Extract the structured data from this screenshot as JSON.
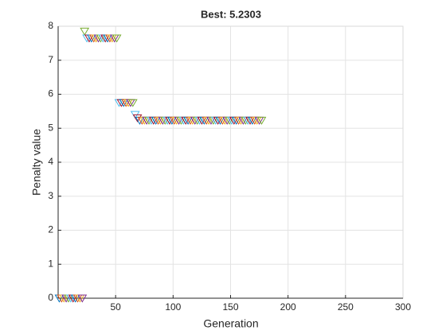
{
  "chart_data": {
    "type": "scatter",
    "title": "Best: 5.2303",
    "x_label": "Generation",
    "y_label": "Penalty value",
    "marker": "triangle-down",
    "marker_colors": [
      "#0072bd",
      "#d95319",
      "#edb120",
      "#7e2f8e",
      "#77ac30",
      "#4dbeee",
      "#a2142f"
    ],
    "x": [
      1,
      3,
      5,
      7,
      9,
      11,
      13,
      15,
      17,
      19,
      21,
      23,
      25,
      27,
      29,
      31,
      33,
      35,
      37,
      39,
      41,
      43,
      45,
      47,
      49,
      51,
      53,
      55,
      57,
      59,
      61,
      63,
      65,
      67,
      69,
      71,
      73,
      75,
      77,
      79,
      81,
      83,
      85,
      87,
      89,
      91,
      93,
      95,
      97,
      99,
      101,
      103,
      105,
      107,
      109,
      111,
      113,
      115,
      117,
      119,
      121,
      123,
      125,
      127,
      129,
      131,
      133,
      135,
      137,
      139,
      141,
      143,
      145,
      147,
      149,
      151,
      153,
      155,
      157,
      159,
      161,
      163,
      165,
      167,
      169,
      171,
      173,
      175,
      177
    ],
    "values": [
      0,
      0,
      0,
      0,
      0,
      0,
      0,
      0,
      0,
      0,
      0,
      7.85,
      7.65,
      7.65,
      7.65,
      7.65,
      7.65,
      7.65,
      7.65,
      7.65,
      7.65,
      7.65,
      7.65,
      7.65,
      7.65,
      7.65,
      5.75,
      5.75,
      5.75,
      5.75,
      5.75,
      5.75,
      5.75,
      5.4,
      5.3,
      5.23,
      5.23,
      5.23,
      5.23,
      5.23,
      5.23,
      5.23,
      5.23,
      5.23,
      5.23,
      5.23,
      5.23,
      5.23,
      5.23,
      5.23,
      5.23,
      5.23,
      5.23,
      5.23,
      5.23,
      5.23,
      5.23,
      5.23,
      5.23,
      5.23,
      5.23,
      5.23,
      5.23,
      5.23,
      5.23,
      5.23,
      5.23,
      5.23,
      5.23,
      5.23,
      5.23,
      5.23,
      5.23,
      5.23,
      5.23,
      5.23,
      5.23,
      5.23,
      5.23,
      5.23,
      5.23,
      5.23,
      5.23,
      5.23,
      5.23,
      5.23,
      5.23,
      5.23,
      5.23
    ],
    "xlim": [
      0,
      300
    ],
    "xticks": [
      50,
      100,
      150,
      200,
      250,
      300
    ],
    "ylim": [
      0,
      8
    ],
    "yticks": [
      0,
      1,
      2,
      3,
      4,
      5,
      6,
      7,
      8
    ],
    "grid": true
  }
}
